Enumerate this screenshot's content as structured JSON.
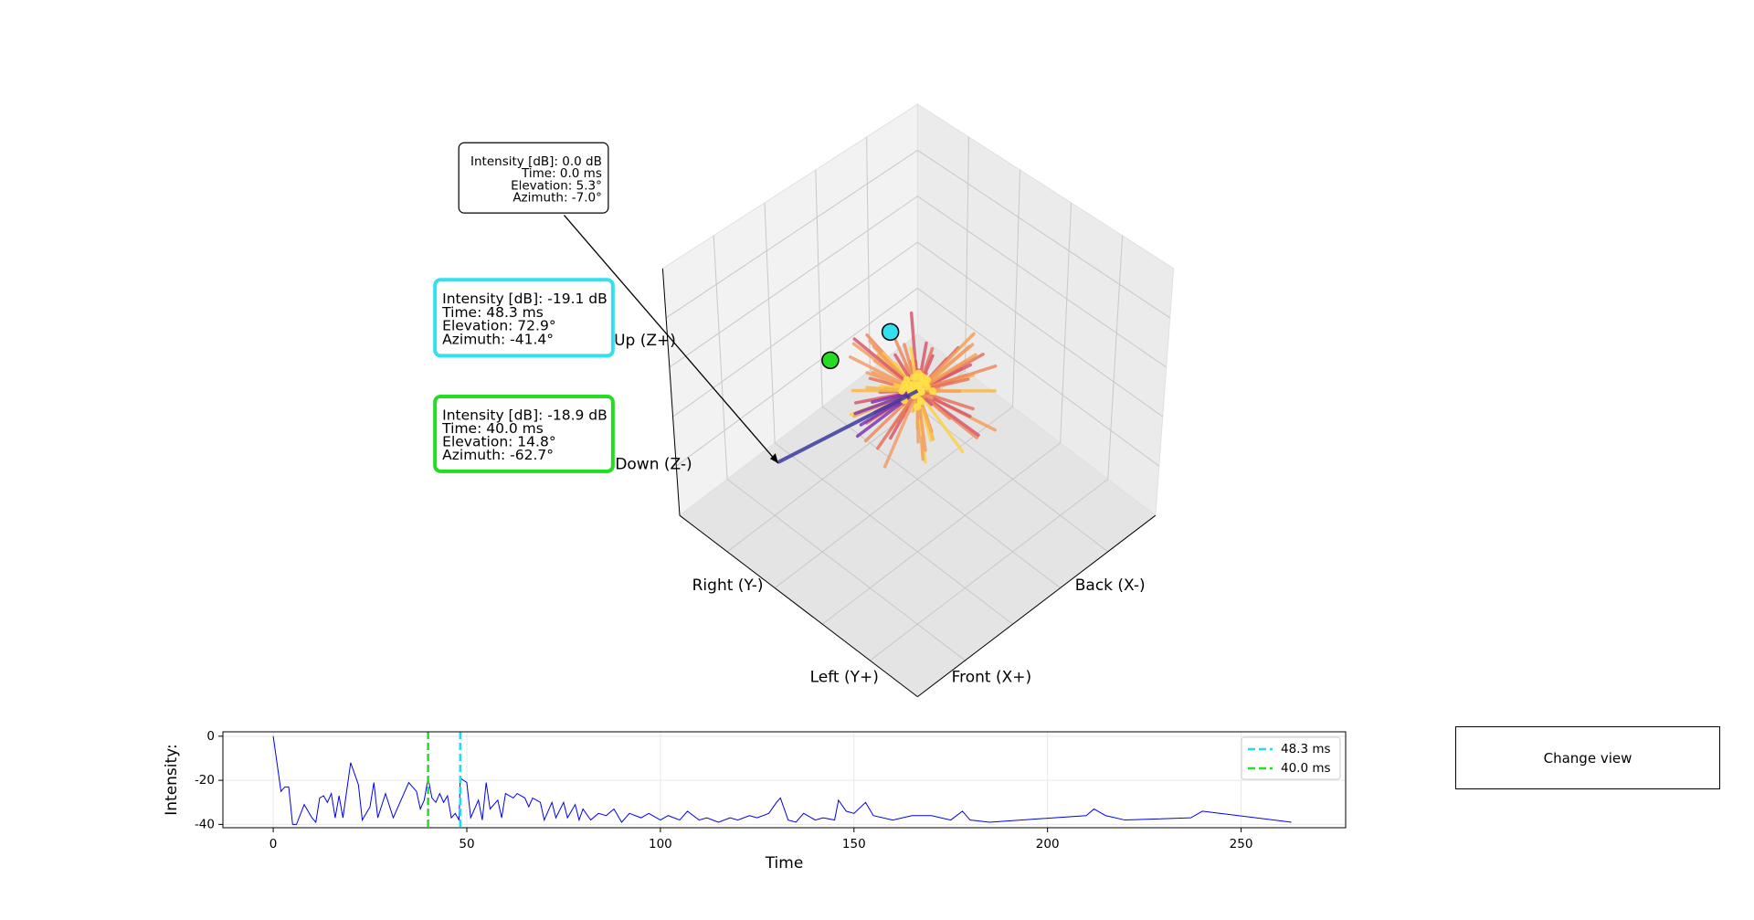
{
  "chart_data": [
    {
      "type": "rays3d",
      "axis_labels": [
        "Up (Z+)",
        "Down (Z-)",
        "Right (Y-)",
        "Left (Y+)",
        "Back (X-)",
        "Front (X+)"
      ],
      "annotations": [
        {
          "lines": [
            "Intensity [dB]: 0.0 dB",
            "Time: 0.0 ms",
            "Elevation: 5.3°",
            "Azimuth: -7.0°"
          ],
          "color": "#000000"
        },
        {
          "lines": [
            "Intensity [dB]: -19.1 dB",
            "Time: 48.3 ms",
            "Elevation: 72.9°",
            "Azimuth: -41.4°"
          ],
          "color": "#33e0f0"
        },
        {
          "lines": [
            "Intensity [dB]: -18.9 dB",
            "Time: 40.0 ms",
            "Elevation: 14.8°",
            "Azimuth: -62.7°"
          ],
          "color": "#22dd22"
        }
      ]
    },
    {
      "type": "line",
      "xlabel": "Time",
      "ylabel": "Intensity:",
      "xlim": [
        -13,
        277
      ],
      "ylim": [
        -41.5,
        2
      ],
      "xticks": [
        0,
        50,
        100,
        150,
        200,
        250
      ],
      "yticks": [
        0,
        -20,
        -40
      ],
      "grid": true,
      "legend": "upper right",
      "series": [
        {
          "color": "#0000ee",
          "x": [
            0,
            2,
            3,
            4,
            5,
            6,
            8,
            10,
            11,
            12,
            13,
            14,
            15,
            16,
            17,
            18,
            20,
            22,
            23,
            25,
            26,
            27,
            29,
            31,
            33,
            35,
            37,
            38,
            39,
            40,
            41,
            42,
            43,
            44,
            45,
            46,
            47,
            48,
            48.3,
            50,
            51,
            53,
            54,
            55,
            56,
            58,
            59,
            60,
            62,
            63,
            65,
            66,
            67,
            69,
            70,
            72,
            73,
            75,
            76,
            78,
            79,
            80,
            82,
            84,
            86,
            88,
            90,
            92,
            95,
            97,
            100,
            102,
            105,
            107,
            110,
            112,
            115,
            118,
            120,
            123,
            125,
            128,
            130,
            131,
            133,
            135,
            137,
            140,
            142,
            145,
            146,
            148,
            150,
            153,
            155,
            160,
            165,
            170,
            175,
            178,
            180,
            185,
            210,
            212,
            215,
            220,
            237,
            240,
            263
          ],
          "values": [
            0,
            -25,
            -23,
            -23,
            -40,
            -40,
            -31,
            -37,
            -39,
            -28,
            -27,
            -30,
            -26,
            -37,
            -27,
            -37,
            -12,
            -22,
            -38,
            -32,
            -21,
            -37,
            -26,
            -37,
            -29,
            -21,
            -25,
            -33,
            -29,
            -19,
            -28,
            -30,
            -26,
            -30,
            -27,
            -37,
            -35,
            -38,
            -19,
            -21,
            -37,
            -29,
            -38,
            -21,
            -33,
            -29,
            -37,
            -26,
            -28,
            -26,
            -28,
            -32,
            -28,
            -30,
            -38,
            -30,
            -37,
            -30,
            -37,
            -31,
            -38,
            -33,
            -38,
            -35,
            -36,
            -33,
            -39,
            -35,
            -37,
            -35,
            -38,
            -36,
            -38,
            -34,
            -38,
            -37,
            -39,
            -37,
            -38,
            -36,
            -37,
            -35,
            -30,
            -28,
            -38,
            -39,
            -35,
            -38,
            -37,
            -38,
            -29,
            -34,
            -35,
            -30,
            -36,
            -38,
            -36,
            -36,
            -38,
            -34,
            -38,
            -39,
            -36,
            -33,
            -36,
            -38,
            -37,
            -34,
            -39
          ]
        }
      ],
      "vlines": [
        {
          "x": 48.3,
          "color": "#22ddee",
          "label": "48.3 ms"
        },
        {
          "x": 40.0,
          "color": "#22dd22",
          "label": "40.0 ms"
        }
      ]
    }
  ],
  "button": {
    "label": "Change view"
  }
}
